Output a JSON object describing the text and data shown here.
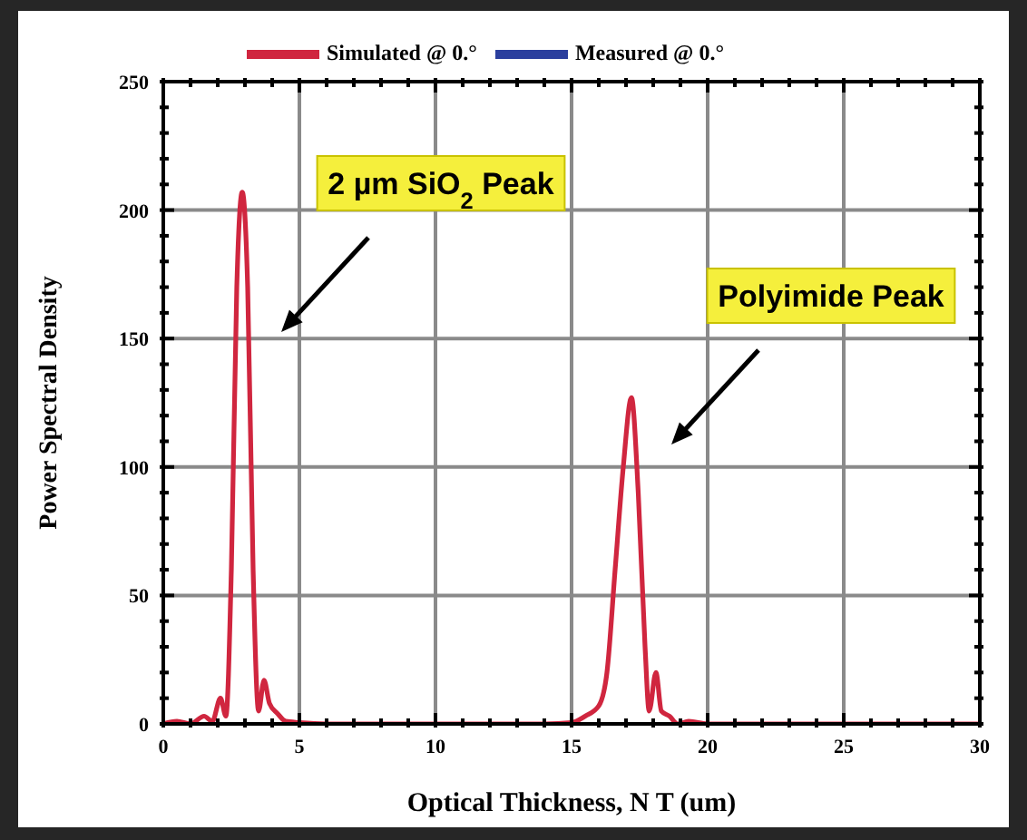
{
  "chart_data": {
    "type": "line",
    "xlabel": "Optical Thickness, N T (um)",
    "ylabel": "Power Spectral Density",
    "x": [
      0,
      0.5,
      1,
      1.5,
      1.8,
      2.1,
      2.3,
      2.5,
      2.7,
      2.9,
      3.1,
      3.3,
      3.5,
      3.7,
      3.9,
      4.2,
      4.5,
      5,
      6,
      10,
      14,
      15,
      15.5,
      16,
      16.3,
      16.6,
      16.9,
      17.2,
      17.45,
      17.7,
      17.85,
      18.1,
      18.3,
      18.6,
      18.9,
      19.3,
      20,
      25,
      30
    ],
    "series": [
      {
        "name": "Simulated @ 0.°",
        "color": "#d0263f",
        "values": [
          0,
          1,
          0,
          3,
          1,
          10,
          3,
          60,
          170,
          207,
          170,
          60,
          5,
          17,
          8,
          4,
          1,
          0.5,
          0,
          0,
          0,
          0.5,
          3,
          7,
          20,
          60,
          100,
          127,
          90,
          30,
          5,
          20,
          5,
          3,
          0,
          1,
          0,
          0,
          0
        ]
      },
      {
        "name": "Measured @ 0.°",
        "color": "#2b3f9e",
        "values": [
          null,
          null,
          null,
          null,
          null,
          null,
          null,
          null,
          null,
          null,
          null,
          null,
          null,
          null,
          null,
          null,
          null,
          null,
          null,
          null,
          null,
          null,
          null,
          null,
          null,
          null,
          null,
          null,
          null,
          null,
          null,
          null,
          null,
          null,
          null,
          null,
          null,
          null,
          null
        ]
      }
    ],
    "xlim": [
      0,
      30
    ],
    "xticks": [
      0,
      {
        "value": 1,
        "label": null
      },
      {
        "value": 2,
        "label": null
      },
      {
        "value": 3,
        "label": null
      },
      {
        "value": 4,
        "label": null
      },
      5,
      {
        "value": 6,
        "label": null
      },
      {
        "value": 7,
        "label": null
      },
      {
        "value": 8,
        "label": null
      },
      {
        "value": 9,
        "label": null
      },
      10,
      {
        "value": 11,
        "label": null
      },
      {
        "value": 12,
        "label": null
      },
      {
        "value": 13,
        "label": null
      },
      {
        "value": 14,
        "label": null
      },
      15,
      {
        "value": 16,
        "label": null
      },
      {
        "value": 17,
        "label": null
      },
      {
        "value": 18,
        "label": null
      },
      {
        "value": 19,
        "label": null
      },
      20,
      {
        "value": 21,
        "label": null
      },
      {
        "value": 22,
        "label": null
      },
      {
        "value": 23,
        "label": null
      },
      {
        "value": 24,
        "label": null
      },
      25,
      {
        "value": 26,
        "label": null
      },
      {
        "value": 27,
        "label": null
      },
      {
        "value": 28,
        "label": null
      },
      {
        "value": 29,
        "label": null
      },
      30
    ],
    "ylim": [
      0,
      250
    ],
    "yticks": [
      0,
      {
        "value": 10,
        "label": null
      },
      {
        "value": 20,
        "label": null
      },
      {
        "value": 30,
        "label": null
      },
      {
        "value": 40,
        "label": null
      },
      50,
      {
        "value": 60,
        "label": null
      },
      {
        "value": 70,
        "label": null
      },
      {
        "value": 80,
        "label": null
      },
      {
        "value": 90,
        "label": null
      },
      100,
      {
        "value": 110,
        "label": null
      },
      {
        "value": 120,
        "label": null
      },
      {
        "value": 130,
        "label": null
      },
      {
        "value": 140,
        "label": null
      },
      150,
      {
        "value": 160,
        "label": null
      },
      {
        "value": 170,
        "label": null
      },
      {
        "value": 180,
        "label": null
      },
      {
        "value": 190,
        "label": null
      },
      200,
      {
        "value": 210,
        "label": null
      },
      {
        "value": 220,
        "label": null
      },
      {
        "value": 230,
        "label": null
      },
      {
        "value": 240,
        "label": null
      },
      250
    ],
    "annotations": [
      "2 µm SiO$_{2}$ Peak",
      "Polyimide Peak"
    ],
    "grid": true,
    "legend": "top",
    "marker": "none",
    "line_style": "solid"
  }
}
